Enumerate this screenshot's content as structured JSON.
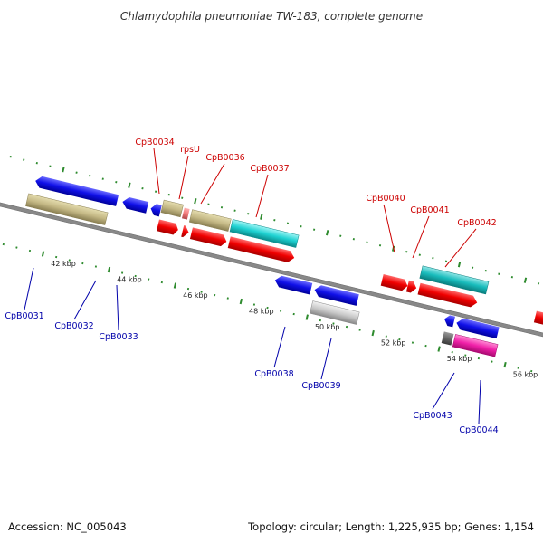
{
  "title": "Chlamydophila pneumoniae TW-183, complete genome",
  "footer": {
    "accession": "Accession: NC_005043",
    "summary": "Topology: circular; Length: 1,225,935 bp; Genes: 1,154"
  },
  "colors": {
    "backbone": "#888888",
    "tick": "#2e8b2e",
    "forward_label": "#cc0000",
    "reverse_label": "#0000aa"
  },
  "kbp_markers": [
    "42 kbp",
    "44 kbp",
    "46 kbp",
    "48 kbp",
    "50 kbp",
    "52 kbp",
    "54 kbp",
    "56 kbp"
  ],
  "gene_labels_forward": [
    "CpB0034",
    "rpsU",
    "CpB0036",
    "CpB0037",
    "CpB0040",
    "CpB0041",
    "CpB0042"
  ],
  "gene_labels_reverse": [
    "CpB0031",
    "CpB0032",
    "CpB0033",
    "CpB0038",
    "CpB0039",
    "CpB0043",
    "CpB0044"
  ]
}
